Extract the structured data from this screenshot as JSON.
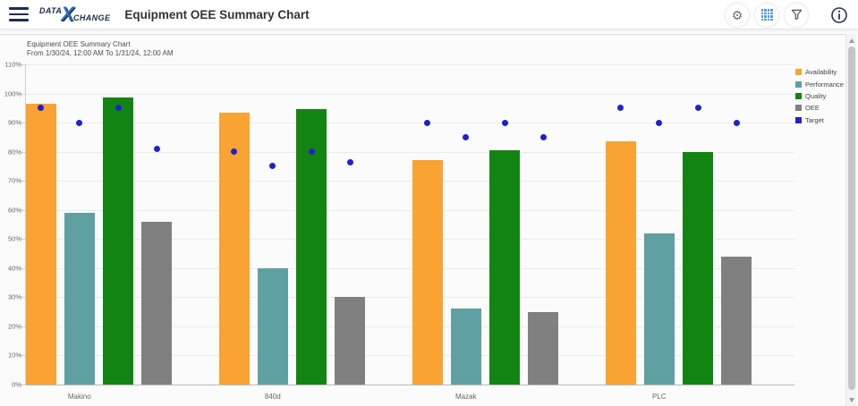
{
  "header": {
    "logo": {
      "part1": "DATA",
      "x": "X",
      "part2": "CHANGE"
    },
    "title": "Equipment OEE Summary Chart",
    "icons": [
      "settings",
      "grid-view",
      "filter",
      "info"
    ]
  },
  "chart_header": {
    "title": "Equipment OEE Summary Chart",
    "subtitle": "From 1/30/24, 12:00 AM To 1/31/24, 12:00 AM"
  },
  "chart_data": {
    "type": "bar",
    "title": "Equipment OEE Summary Chart",
    "subtitle": "From 1/30/24, 12:00 AM To 1/31/24, 12:00 AM",
    "categories": [
      "Makino",
      "840d",
      "Mazak",
      "PLC"
    ],
    "series": [
      {
        "name": "Availability",
        "color": "#F9A332",
        "values": [
          96.5,
          93.5,
          77,
          83.5
        ]
      },
      {
        "name": "Performance",
        "color": "#5FA0A2",
        "values": [
          59,
          40,
          26,
          52
        ]
      },
      {
        "name": "Quality",
        "color": "#128412",
        "values": [
          98.5,
          94.5,
          80.5,
          80
        ]
      },
      {
        "name": "OEE",
        "color": "#808080",
        "values": [
          56,
          30,
          25,
          44
        ]
      }
    ],
    "target_series": {
      "name": "Target",
      "color": "#2020D0",
      "marker": "point",
      "targets_by_category": [
        [
          95,
          90,
          95,
          81
        ],
        [
          80,
          75,
          80,
          76.5
        ],
        [
          90,
          85,
          90,
          85
        ],
        [
          95,
          90,
          95,
          90
        ]
      ]
    },
    "y_axis": {
      "min": 0,
      "max": 110,
      "step": 10,
      "format": "percent",
      "ticks": [
        {
          "value": 0,
          "label": "0%"
        },
        {
          "value": 10,
          "label": "10%"
        },
        {
          "value": 20,
          "label": "20%"
        },
        {
          "value": 30,
          "label": "30%"
        },
        {
          "value": 40,
          "label": "40%"
        },
        {
          "value": 50,
          "label": "50%"
        },
        {
          "value": 60,
          "label": "60%"
        },
        {
          "value": 70,
          "label": "70%"
        },
        {
          "value": 80,
          "label": "80%"
        },
        {
          "value": 90,
          "label": "90%"
        },
        {
          "value": 100,
          "label": "100%"
        },
        {
          "value": 110,
          "label": "110%"
        }
      ]
    },
    "grid": true,
    "legend_position": "top-right",
    "legend": {
      "items": [
        {
          "label": "Availability",
          "color": "#F9A332"
        },
        {
          "label": "Performance",
          "color": "#5FA0A2"
        },
        {
          "label": "Quality",
          "color": "#128412"
        },
        {
          "label": "OEE",
          "color": "#808080"
        },
        {
          "label": "Target",
          "color": "#2020D0"
        }
      ]
    }
  }
}
